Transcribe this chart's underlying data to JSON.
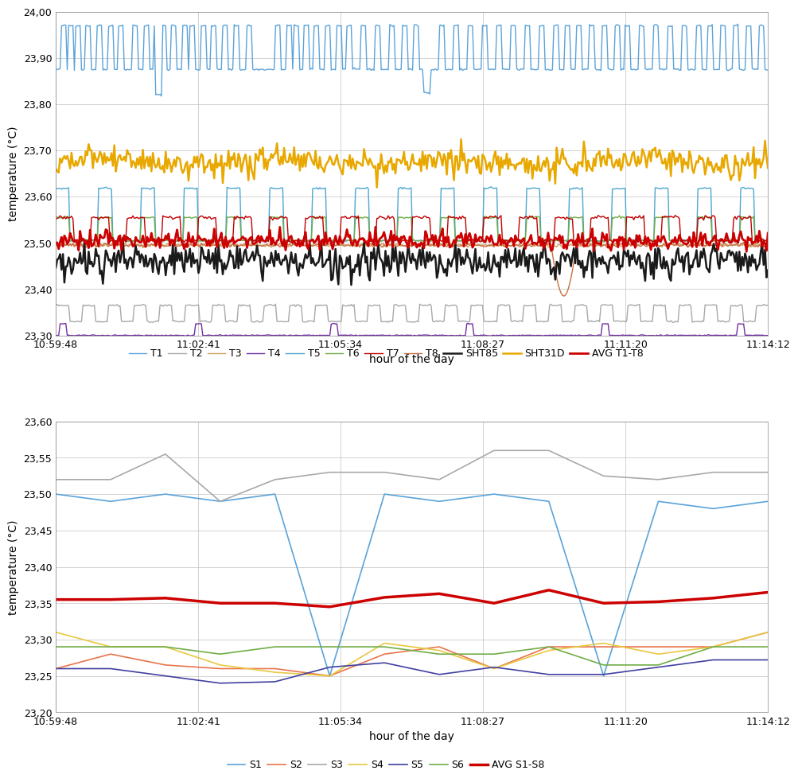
{
  "x_labels": [
    "10:59:48",
    "11:02:41",
    "11:05:34",
    "11:08:27",
    "11:11:20",
    "11:14:12"
  ],
  "top_chart": {
    "ylim": [
      23.3,
      24.0
    ],
    "yticks": [
      23.3,
      23.4,
      23.5,
      23.6,
      23.7,
      23.8,
      23.9,
      24.0
    ],
    "ylabel": "temperature (°C)",
    "xlabel": "hour of the day",
    "series": {
      "T1": {
        "color": "#5BA3D9",
        "lw": 1.0
      },
      "T2": {
        "color": "#A9A9A9",
        "lw": 1.0
      },
      "T3": {
        "color": "#C8A060",
        "lw": 1.0
      },
      "T4": {
        "color": "#7030A0",
        "lw": 1.0
      },
      "T5": {
        "color": "#4DA6D0",
        "lw": 1.0
      },
      "T6": {
        "color": "#70AD47",
        "lw": 1.0
      },
      "T7": {
        "color": "#C00000",
        "lw": 1.0
      },
      "T8": {
        "color": "#C87040",
        "lw": 1.0
      },
      "SHT85": {
        "color": "#1A1A1A",
        "lw": 1.5
      },
      "SHT31D": {
        "color": "#E8A800",
        "lw": 1.8
      },
      "AVG T1-T8": {
        "color": "#CC0000",
        "lw": 2.0
      }
    },
    "legend": [
      "T1",
      "T2",
      "T3",
      "T4",
      "T5",
      "T6",
      "T7",
      "T8",
      "SHT85",
      "SHT31D",
      "AVG T1-T8"
    ]
  },
  "bottom_chart": {
    "ylim": [
      23.2,
      23.6
    ],
    "yticks": [
      23.2,
      23.25,
      23.3,
      23.35,
      23.4,
      23.45,
      23.5,
      23.55,
      23.6
    ],
    "ylabel": "temperature (°C)",
    "xlabel": "hour of the day",
    "series": {
      "S1": {
        "color": "#5BA3D9",
        "lw": 1.0
      },
      "S2": {
        "color": "#E8744A",
        "lw": 1.0
      },
      "S3": {
        "color": "#A9A9A9",
        "lw": 1.0
      },
      "S4": {
        "color": "#E8C840",
        "lw": 1.0
      },
      "S5": {
        "color": "#4040A0",
        "lw": 1.0
      },
      "S6": {
        "color": "#70AD47",
        "lw": 1.0
      },
      "AVG S1-S8": {
        "color": "#CC0000",
        "lw": 2.5
      }
    },
    "legend": [
      "S1",
      "S2",
      "S3",
      "S4",
      "S5",
      "S6",
      "AVG S1-S8"
    ],
    "S1_data": [
      23.5,
      23.49,
      23.5,
      23.49,
      23.5,
      23.25,
      23.5,
      23.49,
      23.5,
      23.49,
      23.25,
      23.49,
      23.48,
      23.49
    ],
    "S2_data": [
      23.26,
      23.28,
      23.265,
      23.26,
      23.26,
      23.25,
      23.28,
      23.29,
      23.26,
      23.29,
      23.29,
      23.29,
      23.29,
      23.31
    ],
    "S3_data": [
      23.52,
      23.52,
      23.555,
      23.49,
      23.52,
      23.53,
      23.53,
      23.52,
      23.56,
      23.56,
      23.525,
      23.52,
      23.53,
      23.53
    ],
    "S4_data": [
      23.31,
      23.29,
      23.29,
      23.265,
      23.255,
      23.25,
      23.295,
      23.285,
      23.26,
      23.285,
      23.295,
      23.28,
      23.29,
      23.31
    ],
    "S5_data": [
      23.26,
      23.26,
      23.25,
      23.24,
      23.242,
      23.262,
      23.268,
      23.252,
      23.262,
      23.252,
      23.252,
      23.262,
      23.272,
      23.272
    ],
    "S6_data": [
      23.29,
      23.29,
      23.29,
      23.28,
      23.29,
      23.29,
      23.29,
      23.28,
      23.28,
      23.29,
      23.265,
      23.265,
      23.29,
      23.29
    ],
    "AVG_data": [
      23.355,
      23.355,
      23.357,
      23.35,
      23.35,
      23.345,
      23.358,
      23.363,
      23.35,
      23.368,
      23.35,
      23.352,
      23.357,
      23.365
    ]
  },
  "background_color": "#FFFFFF",
  "grid_color": "#C0C0C0",
  "tick_label_fontsize": 9,
  "axis_label_fontsize": 10,
  "legend_fontsize": 9
}
